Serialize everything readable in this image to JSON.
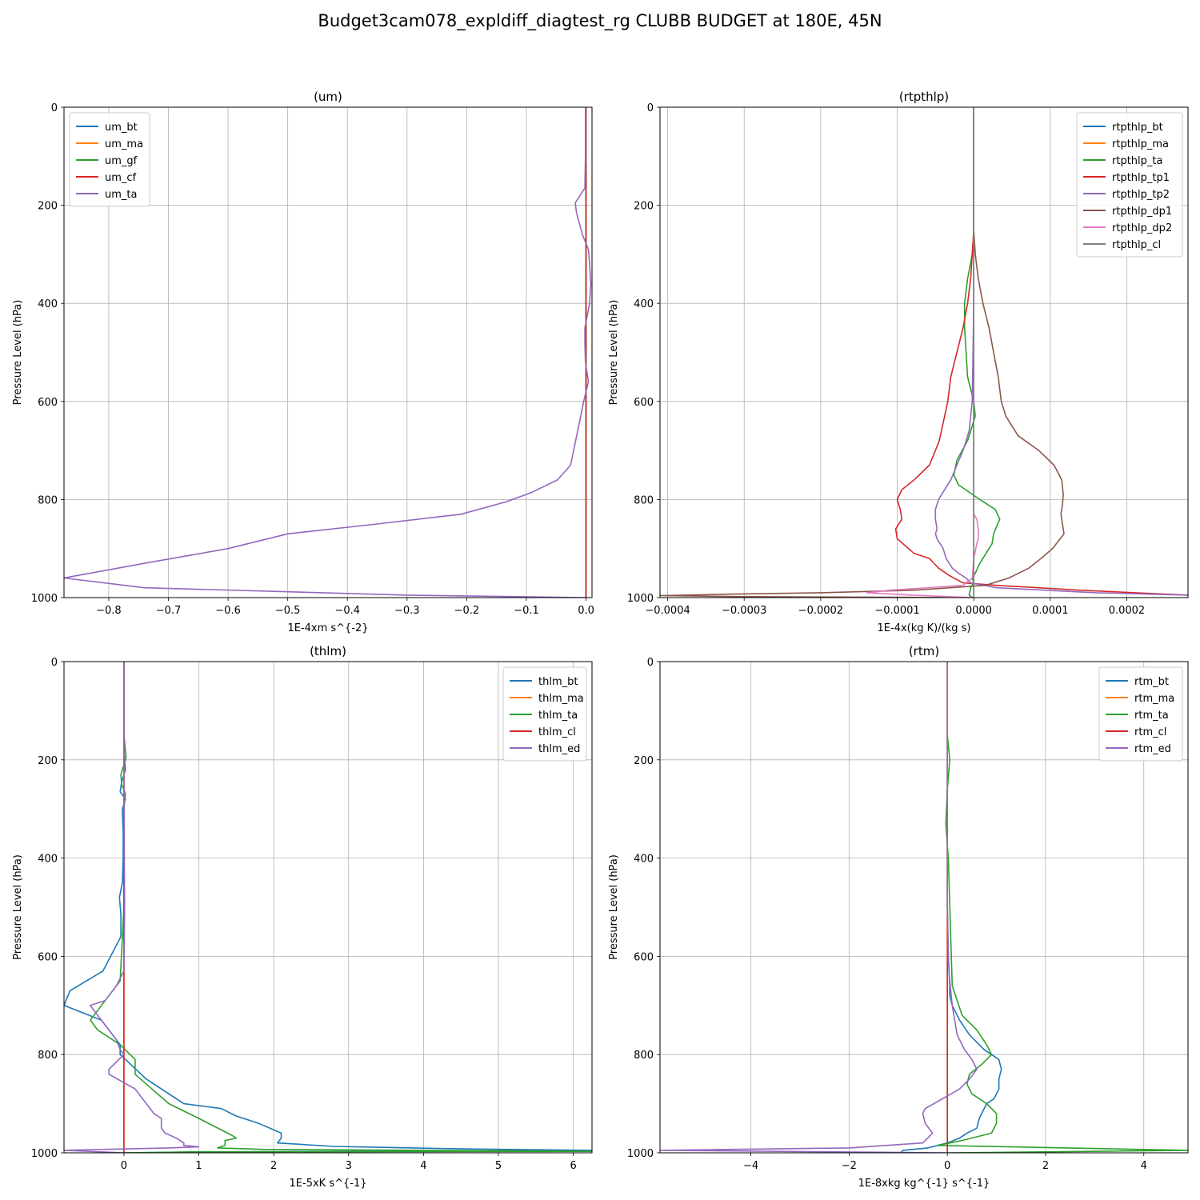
{
  "figure": {
    "suptitle": "Budget3cam078_expldiff_diagtest_rg CLUBB BUDGET at 180E, 45N"
  },
  "chart_data": [
    {
      "type": "line",
      "title": "(um)",
      "xlabel": "1E-4xm s^{-2}",
      "ylabel": "Pressure Level (hPa)",
      "xlim": [
        -0.875,
        0.01
      ],
      "ylim": [
        1000,
        0
      ],
      "xticks": [
        -0.8,
        -0.7,
        -0.6,
        -0.5,
        -0.4,
        -0.3,
        -0.2,
        -0.1,
        0.0
      ],
      "xtick_labels": [
        "−0.8",
        "−0.7",
        "−0.6",
        "−0.5",
        "−0.4",
        "−0.3",
        "−0.2",
        "−0.1",
        "0.0"
      ],
      "yticks": [
        0,
        200,
        400,
        600,
        800,
        1000
      ],
      "ytick_labels": [
        "0",
        "200",
        "400",
        "600",
        "800",
        "1000"
      ],
      "grid": true,
      "legend_position": "upper-left",
      "series": [
        {
          "name": "um_bt",
          "color": "#1f77b4",
          "x": [
            0,
            0,
            0,
            0,
            0
          ],
          "y": [
            0,
            250,
            500,
            750,
            1000
          ]
        },
        {
          "name": "um_ma",
          "color": "#ff7f0e",
          "x": [
            0,
            0,
            0,
            0,
            0
          ],
          "y": [
            0,
            250,
            500,
            750,
            1000
          ]
        },
        {
          "name": "um_gf",
          "color": "#2ca02c",
          "x": [
            0,
            0,
            0,
            0,
            0
          ],
          "y": [
            0,
            250,
            500,
            750,
            1000
          ]
        },
        {
          "name": "um_cf",
          "color": "#d62728",
          "x": [
            0,
            0,
            0,
            0,
            0,
            0,
            0,
            0
          ],
          "y": [
            0,
            165,
            200,
            400,
            480,
            600,
            800,
            1000
          ]
        },
        {
          "name": "um_ta",
          "color": "#9467bd",
          "x": [
            -0.001,
            -0.001,
            -0.002,
            -0.018,
            -0.016,
            -0.006,
            0.004,
            0.006,
            0.008,
            0.006,
            -0.002,
            -0.002,
            -0.001,
            0.004,
            -0.004,
            -0.014,
            -0.026,
            -0.048,
            -0.09,
            -0.135,
            -0.21,
            -0.35,
            -0.5,
            -0.6,
            -0.74,
            -0.875,
            -0.74,
            -0.3,
            0.0
          ],
          "y": [
            0,
            100,
            165,
            195,
            215,
            260,
            290,
            320,
            360,
            400,
            450,
            480,
            520,
            560,
            600,
            660,
            730,
            760,
            785,
            805,
            830,
            850,
            870,
            900,
            930,
            960,
            980,
            995,
            1000
          ]
        }
      ]
    },
    {
      "type": "line",
      "title": "(rtpthlp)",
      "xlabel": "1E-4x(kg K)/(kg s)",
      "ylabel": "Pressure Level (hPa)",
      "xlim": [
        -0.00041,
        0.00028
      ],
      "ylim": [
        1000,
        0
      ],
      "xticks": [
        -0.0004,
        -0.0003,
        -0.0002,
        -0.0001,
        0.0,
        0.0001,
        0.0002
      ],
      "xtick_labels": [
        "−0.0004",
        "−0.0003",
        "−0.0002",
        "−0.0001",
        "0.0000",
        "0.0001",
        "0.0002"
      ],
      "yticks": [
        0,
        200,
        400,
        600,
        800,
        1000
      ],
      "ytick_labels": [
        "0",
        "200",
        "400",
        "600",
        "800",
        "1000"
      ],
      "grid": true,
      "legend_position": "upper-right",
      "series": [
        {
          "name": "rtpthlp_bt",
          "color": "#1f77b4",
          "x": [
            0,
            0,
            0,
            0,
            0
          ],
          "y": [
            0,
            250,
            500,
            750,
            1000
          ]
        },
        {
          "name": "rtpthlp_ma",
          "color": "#ff7f0e",
          "x": [
            0,
            0,
            0,
            0,
            0
          ],
          "y": [
            0,
            250,
            500,
            750,
            1000
          ]
        },
        {
          "name": "rtpthlp_ta",
          "color": "#2ca02c",
          "x": [
            0,
            0,
            -2e-06,
            -8e-06,
            -1.2e-05,
            -1.2e-05,
            -1e-05,
            -8e-06,
            0,
            2e-06,
            -8e-06,
            -2.2e-05,
            -2.6e-05,
            -2e-05,
            8e-06,
            2.8e-05,
            3.4e-05,
            2.6e-05,
            2.4e-05,
            1.6e-05,
            8e-06,
            2e-06,
            -2e-06,
            0,
            -4e-06,
            -6e-06,
            -2e-06
          ],
          "y": [
            0,
            250,
            300,
            350,
            400,
            450,
            500,
            550,
            600,
            630,
            680,
            720,
            750,
            770,
            800,
            820,
            840,
            870,
            890,
            910,
            930,
            950,
            960,
            970,
            980,
            995,
            1000
          ]
        },
        {
          "name": "rtpthlp_tp1",
          "color": "#d62728",
          "x": [
            0,
            0,
            -2e-06,
            -4e-06,
            -8e-06,
            -1.4e-05,
            -2.2e-05,
            -3e-05,
            -3.4e-05,
            -3.8e-05,
            -4.5e-05,
            -5e-05,
            -5.8e-05,
            -7.8e-05,
            -9.4e-05,
            -0.0001,
            -9.6e-05,
            -9.4e-05,
            -0.000102,
            -0.0001,
            -7.8e-05,
            -5.8e-05,
            -4.6e-05,
            -3.2e-05,
            -1.4e-05,
            3e-05,
            0.00014,
            0.00028
          ],
          "y": [
            0,
            250,
            300,
            350,
            400,
            450,
            500,
            550,
            600,
            630,
            680,
            700,
            730,
            760,
            780,
            800,
            820,
            840,
            860,
            880,
            910,
            920,
            940,
            955,
            970,
            975,
            985,
            995
          ]
        },
        {
          "name": "rtpthlp_tp2",
          "color": "#9467bd",
          "x": [
            0,
            0,
            -2e-06,
            -6e-06,
            -1.4e-05,
            -2.2e-05,
            -3e-05,
            -3.8e-05,
            -4.6e-05,
            -5e-05,
            -5e-05,
            -4.8e-05,
            -5e-05,
            -4.8e-05,
            -4e-05,
            -3.6e-05,
            -2.8e-05,
            -2e-05,
            -1e-05,
            -4e-06,
            3e-05,
            0.00016,
            0.00028
          ],
          "y": [
            0,
            400,
            600,
            660,
            700,
            730,
            760,
            780,
            800,
            820,
            840,
            860,
            870,
            880,
            900,
            920,
            940,
            950,
            960,
            970,
            980,
            990,
            995
          ]
        },
        {
          "name": "rtpthlp_dp1",
          "color": "#8c564b",
          "x": [
            0,
            0,
            2e-06,
            6e-06,
            1.2e-05,
            2e-05,
            2.6e-05,
            3.2e-05,
            3.6e-05,
            4.2e-05,
            5.8e-05,
            8.5e-05,
            0.000105,
            0.000115,
            0.000117,
            0.000116,
            0.000114,
            0.000118,
            0.000103,
            8.8e-05,
            7.2e-05,
            4.6e-05,
            1.5e-05,
            -8e-05,
            -0.0002,
            -0.00032,
            -0.00041,
            -0.0003,
            0
          ],
          "y": [
            0,
            250,
            300,
            350,
            400,
            450,
            500,
            550,
            600,
            630,
            670,
            700,
            730,
            760,
            790,
            810,
            830,
            870,
            900,
            920,
            940,
            960,
            975,
            985,
            990,
            993,
            996,
            998,
            1000
          ]
        },
        {
          "name": "rtpthlp_dp2",
          "color": "#e377c2",
          "x": [
            0,
            0,
            4e-06,
            6e-06,
            6e-06,
            4e-06,
            0,
            -2e-06,
            -1.4e-05,
            -0.00011,
            -0.00014,
            -8e-05,
            0
          ],
          "y": [
            0,
            830,
            840,
            860,
            880,
            890,
            920,
            960,
            975,
            985,
            990,
            995,
            1000
          ]
        },
        {
          "name": "rtpthlp_cl",
          "color": "#7f7f7f",
          "x": [
            0,
            0,
            0,
            0,
            0
          ],
          "y": [
            0,
            250,
            500,
            750,
            1000
          ]
        }
      ]
    },
    {
      "type": "line",
      "title": "(thlm)",
      "xlabel": "1E-5xK s^{-1}",
      "ylabel": "Pressure Level (hPa)",
      "xlim": [
        -0.8,
        6.25
      ],
      "ylim": [
        1000,
        0
      ],
      "xticks": [
        0,
        1,
        2,
        3,
        4,
        5,
        6
      ],
      "xtick_labels": [
        "0",
        "1",
        "2",
        "3",
        "4",
        "5",
        "6"
      ],
      "yticks": [
        0,
        200,
        400,
        600,
        800,
        1000
      ],
      "ytick_labels": [
        "0",
        "200",
        "400",
        "600",
        "800",
        "1000"
      ],
      "grid": true,
      "legend_position": "upper-right",
      "series": [
        {
          "name": "thlm_bt",
          "color": "#1f77b4",
          "x": [
            0,
            0,
            0,
            0.02,
            -0.03,
            -0.05,
            0.02,
            -0.02,
            -0.01,
            -0.01,
            -0.02,
            -0.06,
            -0.04,
            -0.04,
            -0.28,
            -0.72,
            -0.8,
            -0.3,
            -0.05,
            -0.05,
            0.3,
            0.6,
            0.8,
            1.3,
            1.5,
            1.8,
            2.1,
            2.1,
            2.05,
            2.8,
            4.5,
            6.25,
            1.0,
            0
          ],
          "y": [
            0,
            150,
            180,
            220,
            245,
            265,
            280,
            300,
            350,
            400,
            450,
            480,
            515,
            560,
            630,
            670,
            700,
            730,
            780,
            800,
            850,
            880,
            900,
            910,
            925,
            940,
            960,
            970,
            980,
            987,
            992,
            995,
            998,
            1000
          ]
        },
        {
          "name": "thlm_ma",
          "color": "#ff7f0e",
          "x": [
            0,
            0,
            0,
            0,
            0
          ],
          "y": [
            0,
            250,
            500,
            750,
            1000
          ]
        },
        {
          "name": "thlm_ta",
          "color": "#2ca02c",
          "x": [
            0,
            0,
            0.02,
            0.03,
            -0.04,
            -0.03,
            0.02,
            0,
            0,
            0,
            -0.05,
            -0.15,
            -0.3,
            -0.45,
            -0.35,
            -0.05,
            0.15,
            0.15,
            0.6,
            1.0,
            1.45,
            1.5,
            1.35,
            1.35,
            1.35,
            1.25,
            1.85,
            4.0,
            6.25,
            1.0,
            0
          ],
          "y": [
            0,
            150,
            180,
            195,
            230,
            250,
            270,
            300,
            400,
            500,
            650,
            670,
            700,
            730,
            750,
            780,
            810,
            840,
            900,
            930,
            965,
            970,
            975,
            980,
            985,
            990,
            993,
            995,
            997,
            998,
            1000
          ]
        },
        {
          "name": "thlm_cl",
          "color": "#d62728",
          "x": [
            0,
            0,
            0,
            0,
            0
          ],
          "y": [
            0,
            250,
            500,
            750,
            1000
          ]
        },
        {
          "name": "thlm_ed",
          "color": "#9467bd",
          "x": [
            0,
            0,
            0.01,
            0,
            -0.1,
            -0.25,
            -0.45,
            -0.35,
            -0.2,
            -0.1,
            -0.05,
            0,
            -0.2,
            -0.2,
            0.15,
            0.25,
            0.4,
            0.5,
            0.5,
            0.55,
            0.7,
            0.8,
            0.8,
            1.0,
            0.6,
            -0.8,
            0
          ],
          "y": [
            0,
            250,
            500,
            630,
            660,
            690,
            700,
            720,
            750,
            770,
            790,
            800,
            830,
            840,
            870,
            890,
            920,
            930,
            950,
            960,
            970,
            980,
            985,
            988,
            990,
            995,
            1000
          ]
        }
      ]
    },
    {
      "type": "line",
      "title": "(rtm)",
      "xlabel": "1E-8xkg kg^{-1} s^{-1}",
      "ylabel": "Pressure Level (hPa)",
      "xlim": [
        -5.85,
        4.9
      ],
      "ylim": [
        1000,
        0
      ],
      "xticks": [
        -4,
        -2,
        0,
        2,
        4
      ],
      "xtick_labels": [
        "−4",
        "−2",
        "0",
        "2",
        "4"
      ],
      "yticks": [
        0,
        200,
        400,
        600,
        800,
        1000
      ],
      "ytick_labels": [
        "0",
        "200",
        "400",
        "600",
        "800",
        "1000"
      ],
      "grid": true,
      "legend_position": "upper-right",
      "series": [
        {
          "name": "rtm_bt",
          "color": "#1f77b4",
          "x": [
            0,
            0,
            0.02,
            0.05,
            0.05,
            0.1,
            0.25,
            0.45,
            0.75,
            1.05,
            1.1,
            1.05,
            1.05,
            0.95,
            0.8,
            0.7,
            0.65,
            0.6,
            0.4,
            0.25,
            0.0,
            -0.4,
            -0.9,
            -0.95
          ],
          "y": [
            0,
            500,
            600,
            660,
            680,
            700,
            730,
            760,
            790,
            810,
            830,
            850,
            870,
            890,
            900,
            920,
            930,
            950,
            960,
            970,
            980,
            990,
            995,
            1000
          ]
        },
        {
          "name": "rtm_ma",
          "color": "#ff7f0e",
          "x": [
            0,
            0,
            0,
            0,
            0
          ],
          "y": [
            0,
            250,
            500,
            750,
            1000
          ]
        },
        {
          "name": "rtm_ta",
          "color": "#2ca02c",
          "x": [
            0,
            0,
            0.05,
            0,
            -0.03,
            0.02,
            0.1,
            0.3,
            0.6,
            0.8,
            0.9,
            0.7,
            0.45,
            0.4,
            0.5,
            0.8,
            1.0,
            1.0,
            0.9,
            0.3,
            -0.2,
            4.9,
            2.0,
            0
          ],
          "y": [
            0,
            150,
            200,
            260,
            330,
            400,
            660,
            720,
            750,
            780,
            800,
            820,
            840,
            860,
            880,
            900,
            920,
            940,
            960,
            975,
            985,
            995,
            998,
            1000
          ]
        },
        {
          "name": "rtm_cl",
          "color": "#d62728",
          "x": [
            0,
            0,
            0,
            0,
            0
          ],
          "y": [
            0,
            250,
            500,
            750,
            1000
          ]
        },
        {
          "name": "rtm_ed",
          "color": "#9467bd",
          "x": [
            0,
            0,
            0.02,
            0.05,
            0.1,
            0.2,
            0.35,
            0.5,
            0.6,
            0.45,
            0.25,
            -0.1,
            -0.45,
            -0.5,
            -0.45,
            -0.3,
            -0.5,
            -2.0,
            -5.85,
            0
          ],
          "y": [
            0,
            500,
            600,
            650,
            700,
            760,
            790,
            810,
            830,
            850,
            870,
            890,
            910,
            920,
            940,
            960,
            980,
            990,
            995,
            1000
          ]
        }
      ]
    }
  ]
}
